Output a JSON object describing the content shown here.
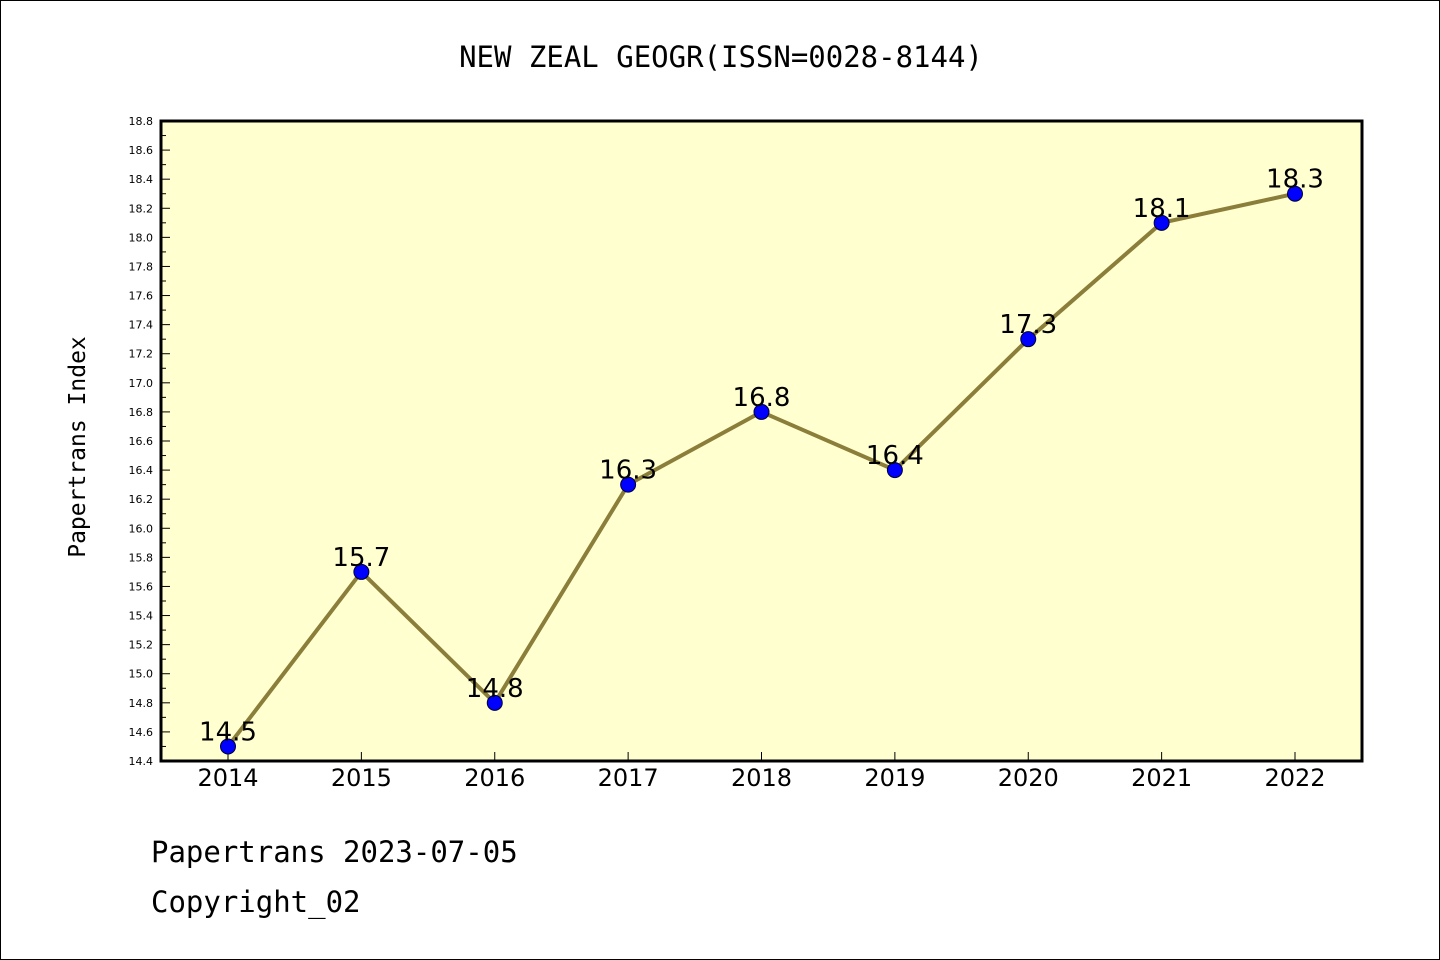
{
  "chart_data": {
    "type": "line",
    "title": "NEW ZEAL GEOGR(ISSN=0028-8144)",
    "xlabel": "",
    "ylabel": "Papertrans Index",
    "x": [
      "2014",
      "2015",
      "2016",
      "2017",
      "2018",
      "2019",
      "2020",
      "2021",
      "2022"
    ],
    "series": [
      {
        "values": [
          14.5,
          15.7,
          14.8,
          16.3,
          16.8,
          16.4,
          17.3,
          18.1,
          18.3
        ],
        "data_labels": [
          "14.5",
          "15.7",
          "14.8",
          "16.3",
          "16.8",
          "16.4",
          "17.3",
          "18.1",
          "18.3"
        ]
      }
    ],
    "ylim": [
      14.4,
      18.8
    ],
    "yticks": [
      "14.4",
      "14.6",
      "14.8",
      "15.0",
      "15.2",
      "15.4",
      "15.6",
      "15.8",
      "16.0",
      "16.2",
      "16.4",
      "16.6",
      "16.8",
      "17.0",
      "17.2",
      "17.4",
      "17.6",
      "17.8",
      "18.0",
      "18.2",
      "18.4",
      "18.6",
      "18.8"
    ],
    "grid": false,
    "legend": "none",
    "colors": {
      "plot_background": "#ffffd0",
      "line": "#8b7d3a",
      "marker": "#0000ff"
    }
  },
  "footer": {
    "line1": "Papertrans 2023-07-05",
    "line2": "Copyright_02"
  }
}
